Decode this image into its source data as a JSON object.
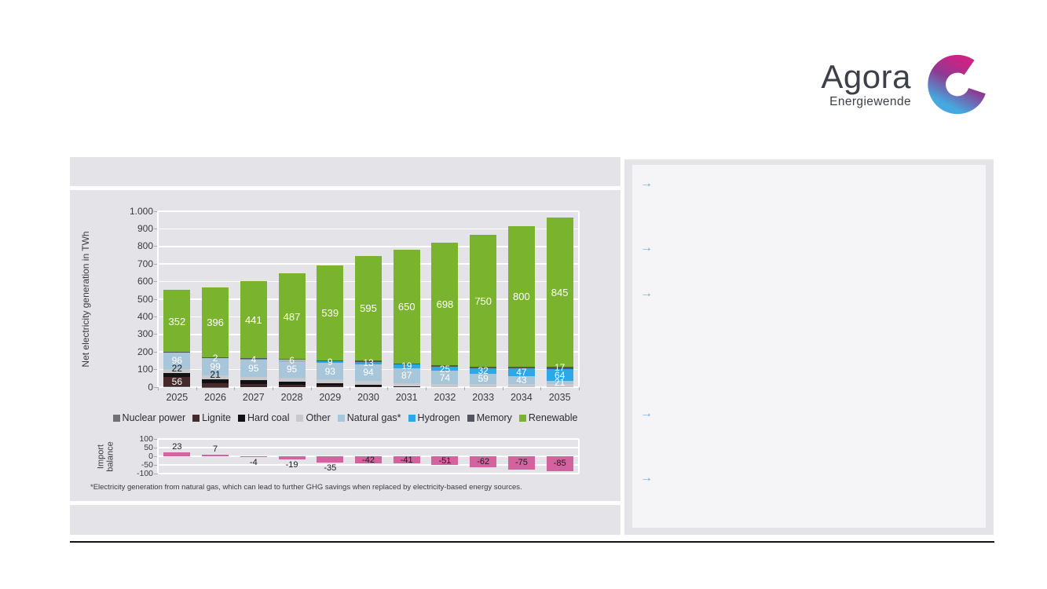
{
  "logo": {
    "brand": "Agora",
    "sub": "Energiewende"
  },
  "right_panel": {
    "bullets": [
      "→",
      "→",
      "→",
      "→",
      "→"
    ]
  },
  "footnote": "*Electricity generation from natural gas, which can lead to further GHG savings when replaced by electricity-based energy sources.",
  "chart_data": [
    {
      "type": "bar",
      "stacked": true,
      "title": "",
      "xlabel": "",
      "ylabel": "Net electricity generation in TWh",
      "ylim": [
        0,
        1000
      ],
      "grid": true,
      "legend_position": "bottom",
      "ytick_labels": [
        "0",
        "100",
        "200",
        "300",
        "400",
        "500",
        "600",
        "700",
        "800",
        "900",
        "1.000"
      ],
      "categories": [
        "2025",
        "2026",
        "2027",
        "2028",
        "2029",
        "2030",
        "2031",
        "2032",
        "2033",
        "2034",
        "2035"
      ],
      "series": [
        {
          "name": "Nuclear power",
          "color": "#707075",
          "values": [
            4,
            2,
            0,
            0,
            0,
            0,
            0,
            0,
            0,
            0,
            0
          ],
          "show_labels": [],
          "label_style": "in"
        },
        {
          "name": "Lignite",
          "color": "#462a2b",
          "values": [
            56,
            22,
            20,
            15,
            10,
            5,
            0,
            0,
            0,
            0,
            0
          ],
          "show_labels": [
            0
          ],
          "label_style": "in"
        },
        {
          "name": "Hard coal",
          "color": "#121214",
          "values": [
            22,
            21,
            18,
            16,
            13,
            10,
            4,
            0,
            0,
            0,
            0
          ],
          "show_labels": [
            0,
            1
          ],
          "label_style": "above"
        },
        {
          "name": "Other",
          "color": "#c8c9cc",
          "values": [
            20,
            22,
            22,
            22,
            22,
            22,
            18,
            18,
            18,
            18,
            16
          ],
          "show_labels": [],
          "label_style": "in"
        },
        {
          "name": "Natural gas*",
          "color": "#a8c6da",
          "values": [
            96,
            99,
            95,
            95,
            93,
            94,
            87,
            74,
            59,
            43,
            21
          ],
          "show_labels": [
            0,
            1,
            2,
            3,
            4,
            5,
            6,
            7,
            8,
            9,
            10
          ],
          "label_style": "in"
        },
        {
          "name": "Hydrogen",
          "color": "#2ea7e6",
          "values": [
            0,
            2,
            4,
            6,
            9,
            13,
            19,
            25,
            32,
            47,
            64
          ],
          "show_labels": [
            1,
            2,
            3,
            4,
            5,
            6,
            7,
            8,
            9,
            10
          ],
          "label_style": "in"
        },
        {
          "name": "Memory",
          "color": "#53545e",
          "values": [
            3,
            3,
            4,
            5,
            6,
            8,
            5,
            7,
            8,
            8,
            17
          ],
          "show_labels": [
            10
          ],
          "label_style": "in"
        },
        {
          "name": "Renewable",
          "color": "#7ab42e",
          "values": [
            352,
            396,
            441,
            487,
            539,
            595,
            650,
            698,
            750,
            800,
            845
          ],
          "show_labels": [
            0,
            1,
            2,
            3,
            4,
            5,
            6,
            7,
            8,
            9,
            10
          ],
          "label_style": "in-big"
        }
      ]
    },
    {
      "type": "bar",
      "title": "",
      "ylabel": "Import balance",
      "ylim": [
        -100,
        100
      ],
      "yticks": [
        100,
        50,
        0,
        -50,
        -100
      ],
      "ytick_labels": [
        "100",
        "50",
        "0",
        "-50",
        "-100"
      ],
      "categories": [
        "2025",
        "2026",
        "2027",
        "2028",
        "2029",
        "2030",
        "2031",
        "2032",
        "2033",
        "2034",
        "2035"
      ],
      "values": [
        23,
        7,
        -4,
        -19,
        -35,
        -42,
        -41,
        -51,
        -62,
        -75,
        -85
      ],
      "color": "#d2639f",
      "grid": true
    }
  ]
}
